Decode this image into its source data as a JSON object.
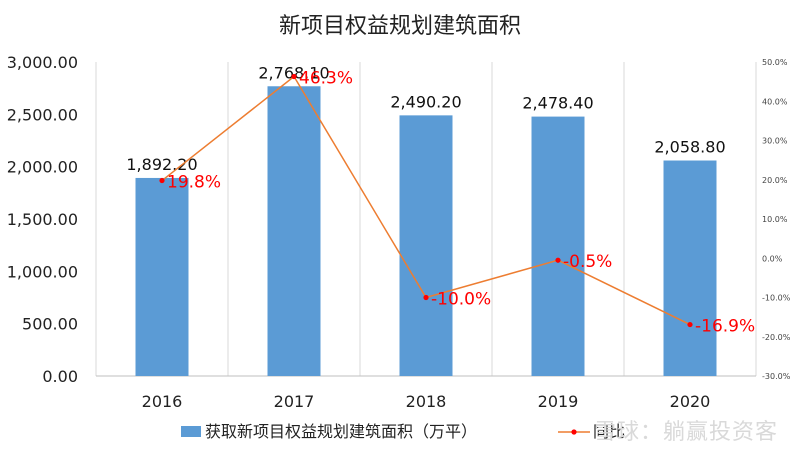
{
  "chart_data": {
    "type": "bar",
    "title": "新项目权益规划建筑面积",
    "categories": [
      "2016",
      "2017",
      "2018",
      "2019",
      "2020"
    ],
    "series": [
      {
        "name": "获取新项目权益规划建筑面积（万平）",
        "type": "bar",
        "axis": "left",
        "values": [
          1892.2,
          2768.1,
          2490.2,
          2478.4,
          2058.8
        ],
        "labels": [
          "1,892.20",
          "2,768.10",
          "2,490.20",
          "2,478.40",
          "2,058.80"
        ],
        "color": "#5b9bd5"
      },
      {
        "name": "同比",
        "type": "line",
        "axis": "right",
        "values": [
          19.8,
          46.3,
          -10.0,
          -0.5,
          -16.9
        ],
        "labels": [
          "19.8%",
          "46.3%",
          "-10.0%",
          "-0.5%",
          "-16.9%"
        ],
        "color": "#ed7d31",
        "marker_color": "#ff0000"
      }
    ],
    "y_left": {
      "ylim": [
        0,
        3000
      ],
      "ticks": [
        "0.00",
        "500.00",
        "1,000.00",
        "1,500.00",
        "2,000.00",
        "2,500.00",
        "3,000.00"
      ]
    },
    "y_right": {
      "ylim": [
        -30,
        50
      ],
      "ticks": [
        "-30.0%",
        "-20.0%",
        "-10.0%",
        "0.0%",
        "10.0%",
        "20.0%",
        "30.0%",
        "40.0%",
        "50.0%"
      ]
    },
    "grid": "vertical",
    "legend": "bottom"
  },
  "watermark": "雪球：躺赢投资客"
}
